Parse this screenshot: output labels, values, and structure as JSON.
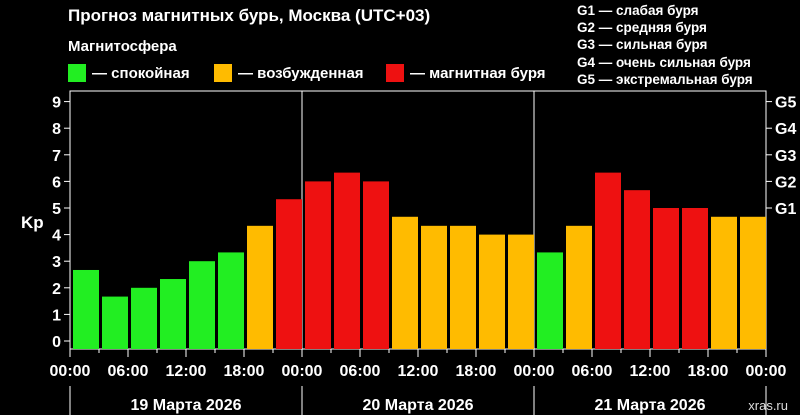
{
  "header": {
    "title": "Прогноз магнитных бурь, Москва (UTC+03)",
    "subtitle": "Магнитосфера"
  },
  "legend": [
    {
      "label": "— спокойная",
      "color": "#22ee22"
    },
    {
      "label": "— возбужденная",
      "color": "#ffbb00"
    },
    {
      "label": "— магнитная буря",
      "color": "#ee1111"
    }
  ],
  "g_legend": [
    "G1 — слабая буря",
    "G2 — средняя буря",
    "G3 — сильная буря",
    "G4 — очень сильная буря",
    "G5 — экстремальная буря"
  ],
  "credit": "xras.ru",
  "chart_data": {
    "type": "bar",
    "ylabel": "Kp",
    "ylim": [
      0,
      9
    ],
    "yticks": [
      "0",
      "1",
      "2",
      "3",
      "4",
      "5",
      "6",
      "7",
      "8",
      "9"
    ],
    "right_ticks": [
      {
        "value": 5,
        "label": "G1"
      },
      {
        "value": 6,
        "label": "G2"
      },
      {
        "value": 7,
        "label": "G3"
      },
      {
        "value": 8,
        "label": "G4"
      },
      {
        "value": 9,
        "label": "G5"
      }
    ],
    "x_tick_labels": [
      "00:00",
      "06:00",
      "12:00",
      "18:00",
      "00:00",
      "06:00",
      "12:00",
      "18:00",
      "00:00",
      "06:00",
      "12:00",
      "18:00",
      "00:00"
    ],
    "days": [
      "19 Марта 2026",
      "20 Марта 2026",
      "21 Марта 2026"
    ],
    "values": [
      2.67,
      1.67,
      2.0,
      2.33,
      3.0,
      3.33,
      4.33,
      5.33,
      6.0,
      6.33,
      6.0,
      4.67,
      4.33,
      4.33,
      4.0,
      4.0,
      3.33,
      4.33,
      6.33,
      5.67,
      5.0,
      5.0,
      4.67,
      4.67
    ],
    "levels": [
      "quiet",
      "quiet",
      "quiet",
      "quiet",
      "quiet",
      "quiet",
      "active",
      "storm",
      "storm",
      "storm",
      "storm",
      "active",
      "active",
      "active",
      "active",
      "active",
      "quiet",
      "active",
      "storm",
      "storm",
      "storm",
      "storm",
      "active",
      "active"
    ],
    "colors": {
      "quiet": "#22ee22",
      "active": "#ffbb00",
      "storm": "#ee1111"
    }
  }
}
